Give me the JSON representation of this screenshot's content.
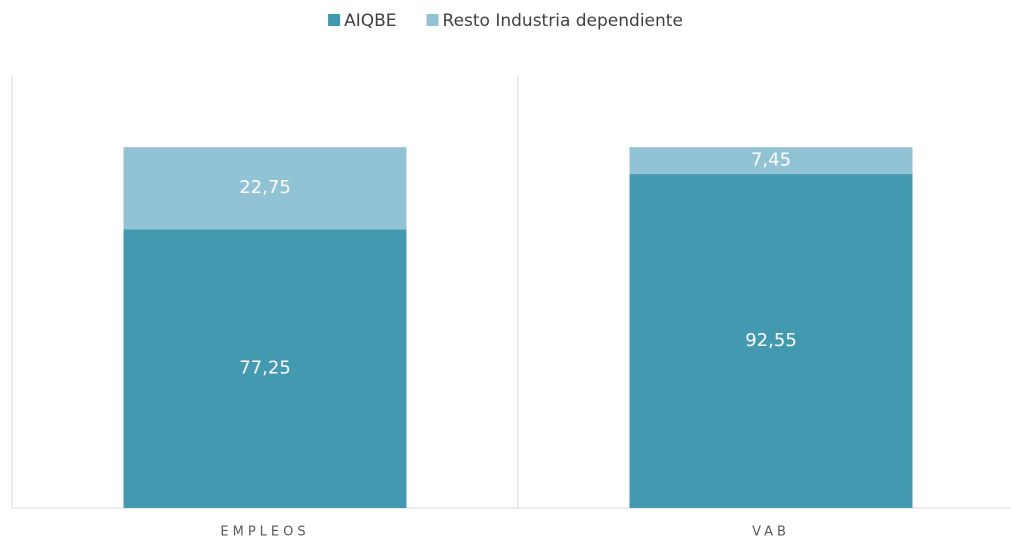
{
  "chart_data": {
    "type": "stacked_bar",
    "categories": [
      "EMPLEOS",
      "VAB"
    ],
    "series": [
      {
        "name": "AIQBE",
        "color": "#4399b0",
        "values": [
          77.25,
          92.55
        ],
        "value_labels": [
          "77,25",
          "92,55"
        ]
      },
      {
        "name": "Resto Industria dependiente",
        "color": "#92c3d5",
        "values": [
          22.75,
          7.45
        ],
        "value_labels": [
          "22,75",
          "7,45"
        ]
      }
    ],
    "ylim": [
      0,
      120
    ],
    "legend": "top"
  }
}
